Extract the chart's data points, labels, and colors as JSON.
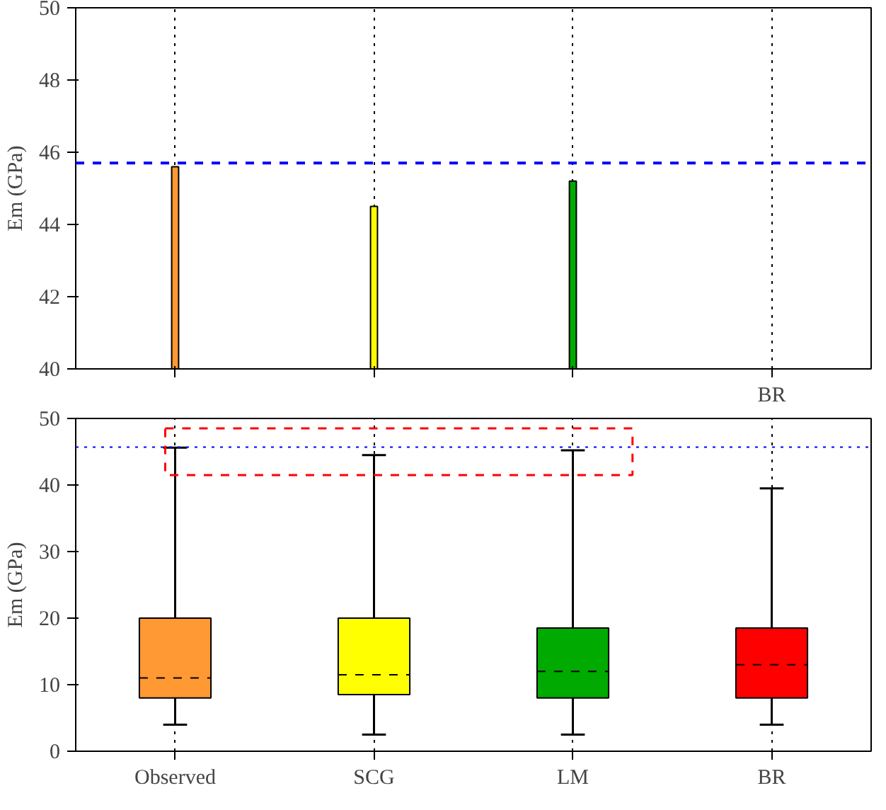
{
  "chart_data": [
    {
      "type": "bar",
      "categories": [
        null,
        null,
        null,
        "BR"
      ],
      "ylabel": "Em (GPa)",
      "ylim": [
        40,
        50
      ],
      "yticks": [
        40,
        42,
        44,
        46,
        48,
        50
      ],
      "grid": "x",
      "values": [
        45.6,
        44.5,
        45.2,
        null
      ],
      "colors": [
        "#ff9933",
        "#ffff00",
        "#00aa00",
        "#ff0000"
      ],
      "ref_lines": [
        {
          "axis": "y",
          "value": 45.7,
          "color": "#0000ff",
          "line_style": "dashed"
        }
      ]
    },
    {
      "type": "box",
      "categories": [
        "Observed",
        "SCG",
        "LM",
        "BR"
      ],
      "ylabel": "Em (GPa)",
      "ylim": [
        0,
        50
      ],
      "yticks": [
        0,
        10,
        20,
        30,
        40,
        50
      ],
      "grid": "x",
      "colors": [
        "#ff9933",
        "#ffff00",
        "#00aa00",
        "#ff0000"
      ],
      "boxes": [
        {
          "low": 4,
          "q1": 8,
          "median": 11,
          "q3": 20,
          "high": 45.6
        },
        {
          "low": 2.5,
          "q1": 8.5,
          "median": 11.5,
          "q3": 20,
          "high": 44.5
        },
        {
          "low": 2.5,
          "q1": 8,
          "median": 12,
          "q3": 18.5,
          "high": 45.2
        },
        {
          "low": 4,
          "q1": 8,
          "median": 13,
          "q3": 18.5,
          "high": 39.5
        }
      ],
      "ref_lines": [
        {
          "axis": "y",
          "value": 45.7,
          "color": "#0000ff",
          "line_style": "dotted"
        }
      ]
    }
  ]
}
